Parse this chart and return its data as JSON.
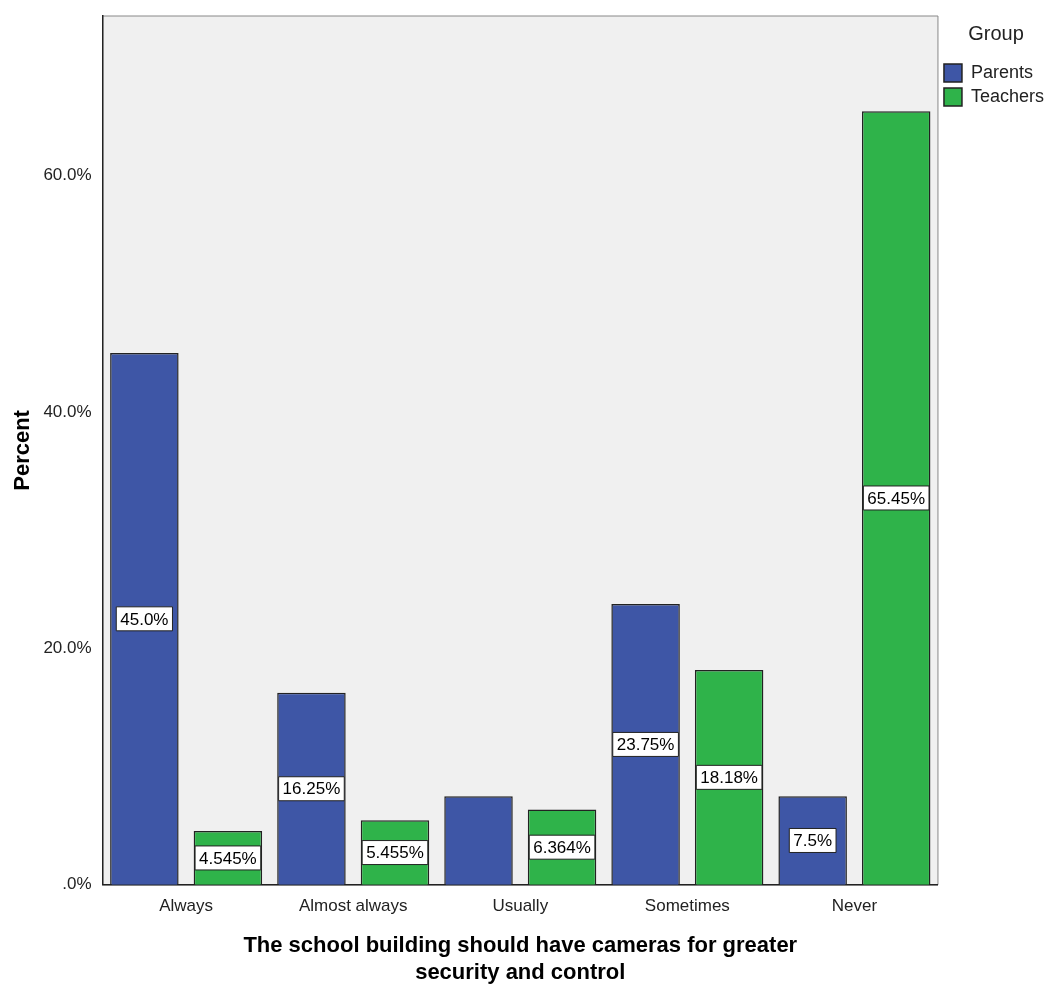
{
  "chart_data": {
    "type": "bar",
    "xlabel": "The school building should have cameras for greater security and control",
    "ylabel": "Percent",
    "legend_title": "Group",
    "legend": "right",
    "categories": [
      "Always",
      "Almost always",
      "Usually",
      "Sometimes",
      "Never"
    ],
    "series": [
      {
        "name": "Parents",
        "color": "#3e56a6",
        "values": [
          45.0,
          16.25,
          7.5,
          23.75,
          7.5
        ],
        "value_labels": [
          "45.0%",
          "16.25%",
          null,
          "23.75%",
          "7.5%"
        ]
      },
      {
        "name": "Teachers",
        "color": "#2fb34a",
        "values": [
          4.545,
          5.455,
          6.364,
          18.18,
          65.45
        ],
        "value_labels": [
          "4.545%",
          "5.455%",
          "6.364%",
          "18.18%",
          "65.45%"
        ]
      }
    ],
    "ylim": [
      0,
      73.5
    ],
    "yticks": [
      {
        "value": 0,
        "label": ".0%"
      },
      {
        "value": 20,
        "label": "20.0%"
      },
      {
        "value": 40,
        "label": "40.0%"
      },
      {
        "value": 60,
        "label": "60.0%"
      }
    ],
    "grid": false
  }
}
